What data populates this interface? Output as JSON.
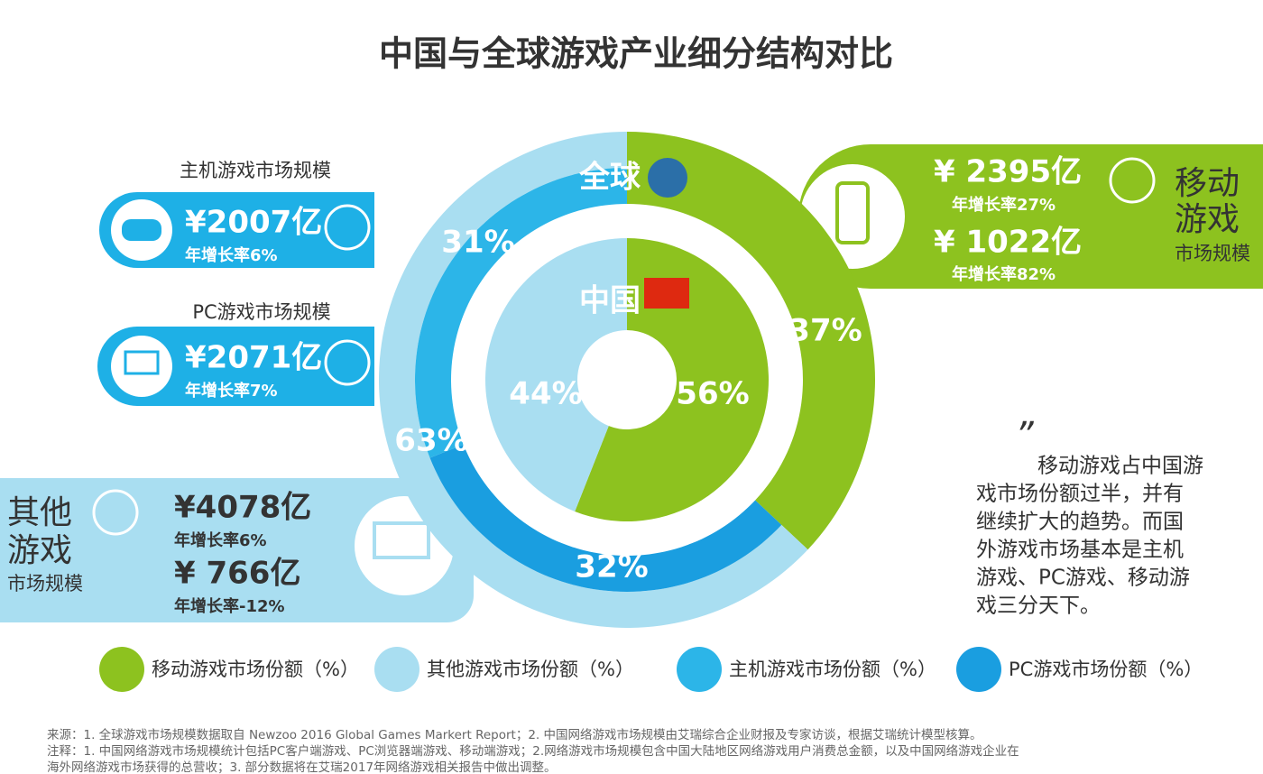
{
  "title": "中国与全球游戏产业细分结构对比",
  "chart_data": [
    {
      "type": "global-rings",
      "label": "全球",
      "values": [
        37,
        31,
        32
      ],
      "value_labels": [
        "37%",
        "31%",
        "32%"
      ],
      "colors": [
        "#8dc21f",
        "#2cb5e8",
        "#1a9ee0"
      ],
      "others": {
        "value": 63,
        "label": "63%",
        "color": "#a9def1"
      }
    },
    {
      "type": "china-pie",
      "label": "中国",
      "values": [
        56,
        44
      ],
      "value_labels": [
        "56%",
        "44%"
      ],
      "colors": [
        "#8dc21f",
        "#a9def1"
      ]
    }
  ],
  "panels": {
    "console": {
      "title": "主机游戏市场规模",
      "amount": "¥2007亿",
      "growth": "年增长率6%"
    },
    "pc": {
      "title": "PC游戏市场规模",
      "amount": "¥2071亿",
      "growth": "年增长率7%"
    },
    "mobile": {
      "title": [
        "移动",
        "游戏"
      ],
      "subtitle": "市场规模",
      "global_amount": "¥ 2395亿",
      "global_growth": "年增长率27%",
      "china_amount": "¥ 1022亿",
      "china_growth": "年增长率82%"
    },
    "other": {
      "title": [
        "其他",
        "游戏"
      ],
      "subtitle": "市场规模",
      "global_amount": "¥4078亿",
      "global_growth": "年增长率6%",
      "china_amount": "¥ 766亿",
      "china_growth": "年增长率-12%"
    }
  },
  "legend": [
    {
      "name": "移动游戏市场份额（%）",
      "color": "#8dc21f"
    },
    {
      "name": "其他游戏市场份额（%）",
      "color": "#a9def1"
    },
    {
      "name": "主机游戏市场份额（%）",
      "color": "#2cb5e8"
    },
    {
      "name": "PC游戏市场份额（%）",
      "color": "#1a9ee0"
    }
  ],
  "quote": {
    "mark": "”",
    "lines": [
      "移动游戏占中国游",
      "戏市场份额过半，并有",
      "继续扩大的趋势。而国",
      "外游戏市场基本是主机",
      "游戏、PC游戏、移动游",
      "戏三分天下。"
    ]
  },
  "footnotes": [
    "来源：1. 全球游戏市场规模数据取自 Newzoo 2016 Global Games Markert Report；2. 中国网络游戏市场规模由艾瑞综合企业财报及专家访谈，根据艾瑞统计模型核算。",
    "注释：1. 中国网络游戏市场规模统计包括PC客户端游戏、PC浏览器端游戏、移动端游戏；2.网络游戏市场规模包含中国大陆地区网络游戏用户消费总金额，以及中国网络游戏企业在",
    "海外网络游戏市场获得的总营收；3. 部分数据将在艾瑞2017年网络游戏相关报告中做出调整。"
  ]
}
